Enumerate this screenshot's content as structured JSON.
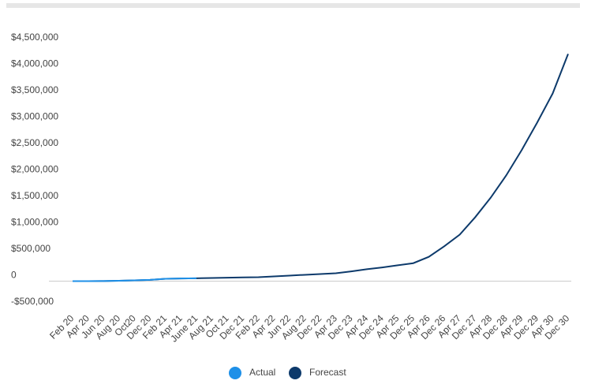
{
  "chart_data": {
    "type": "line",
    "categories": [
      "Feb 20",
      "Apr 20",
      "Jun 20",
      "Aug 20",
      "Oct20",
      "Dec 20",
      "Feb 21",
      "Apr 21",
      "June 21",
      "Aug 21",
      "Oct 21",
      "Dec 21",
      "Feb 22",
      "Apr 22",
      "Jun 22",
      "Aug 22",
      "Dec 22",
      "Apr 23",
      "Dec 23",
      "Apr 24",
      "Dec 24",
      "Apr 25",
      "Dec 25",
      "Apr 26",
      "Dec 26",
      "Apr 27",
      "Dec 27",
      "Apr 28",
      "Dec 28",
      "Apr 29",
      "Dec 29",
      "Apr 30",
      "Dec 30"
    ],
    "series": [
      {
        "name": "Forecast",
        "color": "#0d3a6b",
        "values": [
          0,
          0,
          2000,
          8000,
          15000,
          25000,
          45000,
          50000,
          55000,
          60000,
          65000,
          70000,
          75000,
          90000,
          105000,
          120000,
          135000,
          150000,
          185000,
          225000,
          260000,
          300000,
          340000,
          460000,
          660000,
          880000,
          1210000,
          1580000,
          2000000,
          2480000,
          3000000,
          3550000,
          4300000
        ]
      },
      {
        "name": "Actual",
        "color": "#1e90e8",
        "values": [
          0,
          0,
          2000,
          8000,
          15000,
          25000,
          45000,
          50000,
          55000,
          null,
          null,
          null,
          null,
          null,
          null,
          null,
          null,
          null,
          null,
          null,
          null,
          null,
          null,
          null,
          null,
          null,
          null,
          null,
          null,
          null,
          null,
          null,
          null
        ]
      }
    ],
    "legend_order": [
      "Actual",
      "Forecast"
    ],
    "ylim": [
      -500000,
      4500000
    ],
    "yticks": [
      {
        "value": -500000,
        "label": "-$500,000"
      },
      0,
      {
        "value": 500000,
        "label": "$500,000"
      },
      {
        "value": 1000000,
        "label": "$1,000,000"
      },
      {
        "value": 1500000,
        "label": "$1,500,000"
      },
      {
        "value": 2000000,
        "label": "$2,000,000"
      },
      {
        "value": 2500000,
        "label": "$2,500,000"
      },
      {
        "value": 3000000,
        "label": "$3,000,000"
      },
      {
        "value": 3500000,
        "label": "$3,500,000"
      },
      {
        "value": 4000000,
        "label": "$4,000,000"
      },
      {
        "value": 4500000,
        "label": "$4,500,000"
      }
    ],
    "grid": false,
    "legend": "bottom"
  }
}
